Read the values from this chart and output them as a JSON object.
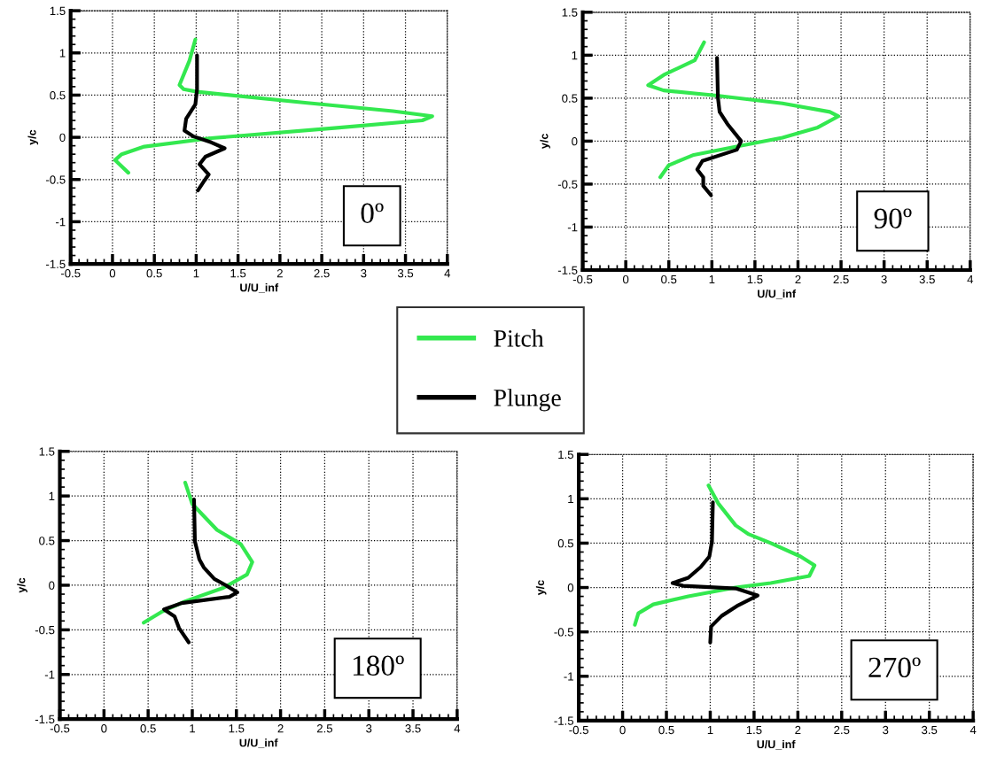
{
  "chart_data": [
    {
      "type": "line",
      "xlabel": "U/U_inf",
      "ylabel": "y/c",
      "annotations": [
        "0º"
      ],
      "xlim": [
        -0.5,
        4
      ],
      "ylim": [
        -1.5,
        1.5
      ],
      "xticks": [
        -0.5,
        0,
        0.5,
        1,
        1.5,
        2,
        2.5,
        3,
        3.5,
        4
      ],
      "yticks": [
        -1.5,
        -1,
        -0.5,
        0,
        0.5,
        1,
        1.5
      ],
      "grid": true,
      "legend": "bottom",
      "line_style": "solid",
      "series": [
        {
          "name": "Pitch",
          "color": "#33e84f",
          "x": [
            0.99,
            0.92,
            0.8,
            0.85,
            1.01,
            2.3,
            3.35,
            3.82,
            3.7,
            2.65,
            1.18,
            0.38,
            0.11,
            0.03,
            0.19
          ],
          "values": [
            1.16,
            0.91,
            0.62,
            0.57,
            0.54,
            0.41,
            0.31,
            0.25,
            0.2,
            0.11,
            -0.01,
            -0.11,
            -0.2,
            -0.27,
            -0.42
          ]
        },
        {
          "name": "Plunge",
          "color": "#000000",
          "x": [
            1.01,
            1.01,
            0.99,
            0.88,
            0.86,
            0.97,
            1.18,
            1.34,
            1.11,
            1.04,
            1.15,
            1.1,
            1.02
          ],
          "values": [
            0.97,
            0.57,
            0.39,
            0.22,
            0.08,
            0.01,
            -0.06,
            -0.13,
            -0.23,
            -0.32,
            -0.44,
            -0.51,
            -0.63
          ]
        }
      ]
    },
    {
      "type": "line",
      "xlabel": "U/U_inf",
      "ylabel": "y/c",
      "annotations": [
        "90º"
      ],
      "xlim": [
        -0.5,
        4
      ],
      "ylim": [
        -1.5,
        1.5
      ],
      "xticks": [
        -0.5,
        0,
        0.5,
        1,
        1.5,
        2,
        2.5,
        3,
        3.5,
        4
      ],
      "yticks": [
        -1.5,
        -1,
        -0.5,
        0,
        0.5,
        1,
        1.5
      ],
      "grid": true,
      "line_style": "solid",
      "series": [
        {
          "color": "#33e84f",
          "x": [
            0.91,
            0.8,
            0.44,
            0.26,
            0.44,
            1.06,
            1.82,
            2.37,
            2.47,
            2.23,
            1.82,
            1.3,
            0.79,
            0.5,
            0.4
          ],
          "values": [
            1.15,
            0.94,
            0.77,
            0.65,
            0.59,
            0.53,
            0.44,
            0.34,
            0.29,
            0.16,
            0.04,
            -0.06,
            -0.16,
            -0.28,
            -0.42
          ]
        },
        {
          "color": "#000000",
          "x": [
            1.06,
            1.07,
            1.09,
            1.18,
            1.34,
            1.29,
            0.89,
            0.83,
            0.9,
            0.9,
            0.99
          ],
          "values": [
            0.97,
            0.51,
            0.34,
            0.2,
            0.0,
            -0.1,
            -0.23,
            -0.33,
            -0.42,
            -0.52,
            -0.63
          ]
        }
      ]
    },
    {
      "type": "line",
      "xlabel": "U/U_inf",
      "ylabel": "y/c",
      "annotations": [
        "180º"
      ],
      "xlim": [
        -0.5,
        4
      ],
      "ylim": [
        -1.5,
        1.5
      ],
      "xticks": [
        -0.5,
        0,
        0.5,
        1,
        1.5,
        2,
        2.5,
        3,
        3.5,
        4
      ],
      "yticks": [
        -1.5,
        -1,
        -0.5,
        0,
        0.5,
        1,
        1.5
      ],
      "grid": true,
      "line_style": "solid",
      "series": [
        {
          "color": "#33e84f",
          "x": [
            0.92,
            1.0,
            1.28,
            1.55,
            1.68,
            1.62,
            1.35,
            0.92,
            0.65,
            0.45
          ],
          "values": [
            1.15,
            0.91,
            0.62,
            0.46,
            0.26,
            0.12,
            -0.03,
            -0.18,
            -0.3,
            -0.42
          ]
        },
        {
          "color": "#000000",
          "x": [
            1.02,
            1.03,
            1.08,
            1.13,
            1.25,
            1.38,
            1.51,
            1.42,
            0.88,
            0.68,
            0.8,
            0.85,
            0.96
          ],
          "values": [
            0.96,
            0.49,
            0.29,
            0.2,
            0.07,
            0.0,
            -0.08,
            -0.13,
            -0.2,
            -0.27,
            -0.35,
            -0.48,
            -0.64
          ]
        }
      ]
    },
    {
      "type": "line",
      "xlabel": "U/U_inf",
      "ylabel": "y/c",
      "annotations": [
        "270º"
      ],
      "xlim": [
        -0.5,
        4
      ],
      "ylim": [
        -1.5,
        1.5
      ],
      "xticks": [
        -0.5,
        0,
        0.5,
        1,
        1.5,
        2,
        2.5,
        3,
        3.5,
        4
      ],
      "yticks": [
        -1.5,
        -1,
        -0.5,
        0,
        0.5,
        1,
        1.5
      ],
      "grid": true,
      "line_style": "solid",
      "series": [
        {
          "color": "#33e84f",
          "x": [
            0.98,
            1.09,
            1.29,
            1.44,
            1.69,
            2.03,
            2.19,
            2.13,
            1.69,
            1.29,
            0.75,
            0.35,
            0.18,
            0.14
          ],
          "values": [
            1.15,
            0.95,
            0.7,
            0.6,
            0.5,
            0.35,
            0.25,
            0.13,
            0.05,
            0.0,
            -0.1,
            -0.19,
            -0.29,
            -0.42
          ]
        },
        {
          "color": "#000000",
          "x": [
            1.03,
            1.02,
            0.99,
            0.89,
            0.75,
            0.57,
            0.69,
            1.29,
            1.54,
            1.32,
            1.13,
            1.01,
            1.0
          ],
          "values": [
            0.96,
            0.52,
            0.35,
            0.23,
            0.11,
            0.05,
            0.02,
            -0.01,
            -0.09,
            -0.2,
            -0.32,
            -0.44,
            -0.62
          ]
        }
      ]
    }
  ]
}
